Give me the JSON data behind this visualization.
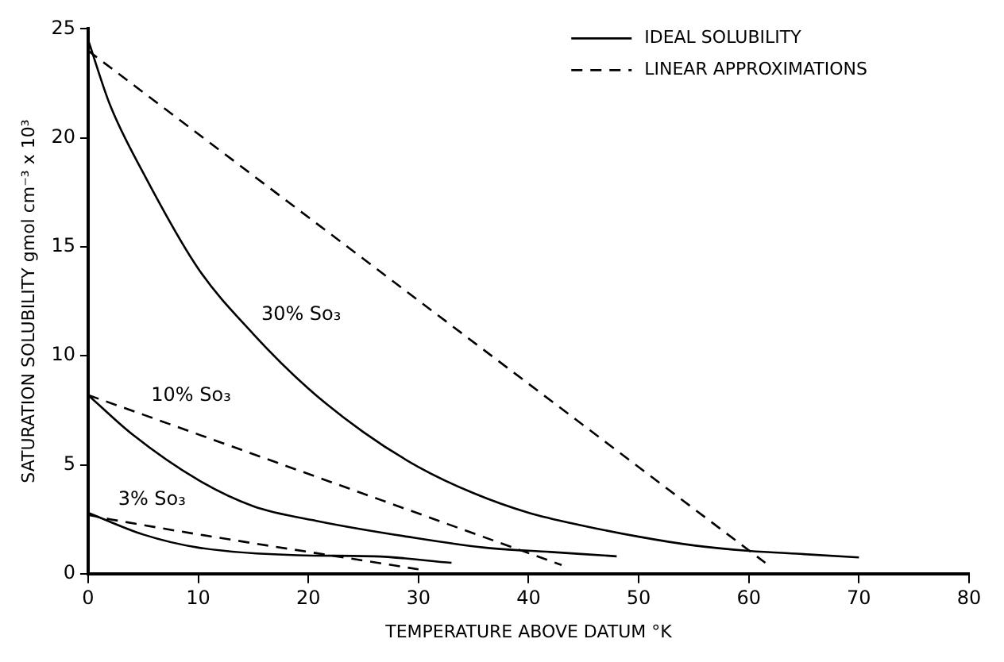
{
  "chart_data": {
    "type": "line",
    "xlabel": "TEMPERATURE ABOVE DATUM °K",
    "ylabel": "SATURATION SOLUBILITY gmol cm⁻³ x 10³",
    "xlim": [
      0,
      80
    ],
    "xticks": [
      0,
      10,
      20,
      30,
      40,
      50,
      60,
      70,
      80
    ],
    "ylim": [
      0,
      25
    ],
    "yticks": [
      0,
      5,
      10,
      15,
      20,
      25
    ],
    "grid": false,
    "legend": "top right",
    "marker": "none",
    "series": [
      {
        "name": "IDEAL SOLUBILITY",
        "color": "#000000",
        "line_style": "solid",
        "x": [
          0,
          2,
          5,
          10,
          15,
          20,
          25,
          30,
          35,
          40,
          45,
          50,
          55,
          60,
          65,
          70
        ],
        "values": [
          24.5,
          21.5,
          18.4,
          14,
          11,
          8.5,
          6.5,
          4.9,
          3.7,
          2.8,
          2.2,
          1.7,
          1.3,
          1.05,
          0.9,
          0.75
        ]
      },
      {
        "name": "LINEAR APPROXIMATIONS",
        "color": "#000000",
        "line_style": "dashed",
        "x": [
          0,
          61.5
        ],
        "values": [
          24,
          0.5
        ]
      },
      {
        "color": "#000000",
        "line_style": "solid",
        "x": [
          0,
          4,
          10,
          15,
          21,
          29,
          36,
          42,
          48
        ],
        "values": [
          8.2,
          6.4,
          4.3,
          3.1,
          2.4,
          1.7,
          1.2,
          1,
          0.8
        ]
      },
      {
        "color": "#000000",
        "line_style": "dashed",
        "x": [
          0,
          5,
          43
        ],
        "values": [
          8.2,
          7.3,
          0.4
        ]
      },
      {
        "color": "#000000",
        "line_style": "solid",
        "x": [
          0,
          5,
          10,
          19,
          26,
          33
        ],
        "values": [
          2.8,
          1.8,
          1.2,
          0.85,
          0.8,
          0.5
        ]
      },
      {
        "color": "#000000",
        "line_style": "dashed",
        "x": [
          0,
          2,
          30
        ],
        "values": [
          2.7,
          2.5,
          0.2
        ]
      }
    ],
    "annotations": [
      {
        "text": "30% So₃",
        "x": 15,
        "y": 11
      },
      {
        "text": "10% So₃",
        "x": 5,
        "y": 7.3
      },
      {
        "text": "3% So₃",
        "x": 2,
        "y": 2.5
      }
    ]
  }
}
